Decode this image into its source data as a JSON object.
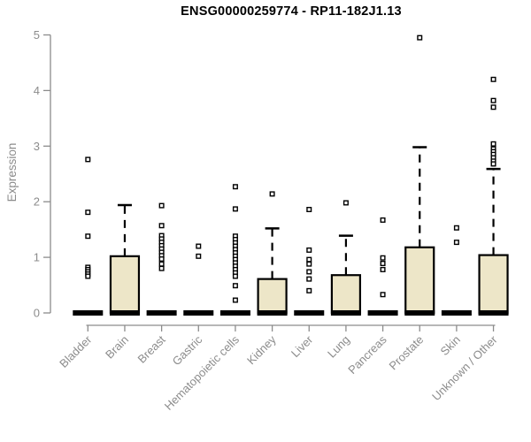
{
  "chart_data": {
    "type": "boxplot",
    "title": "ENSG00000259774 - RP11-182J1.13",
    "ylabel": "Expression",
    "xlabel": "",
    "ylim": [
      0,
      5
    ],
    "yticks": [
      0,
      1,
      2,
      3,
      4,
      5
    ],
    "grid": false,
    "legend": "none",
    "box_fill_color": "#EDE6C8",
    "box_line_color": "#000000",
    "axis_color": "#8c8c8c",
    "categories": [
      "Bladder",
      "Brain",
      "Breast",
      "Gastric",
      "Hematopoietic cells",
      "Kidney",
      "Liver",
      "Lung",
      "Pancreas",
      "Prostate",
      "Skin",
      "Unknown / Other"
    ],
    "series": [
      {
        "category": "Bladder",
        "median": 0,
        "q1": 0,
        "q3": 0,
        "whisker_low": 0,
        "whisker_high": 0,
        "outliers": [
          2.76,
          1.81,
          1.38,
          0.82,
          0.78,
          0.74,
          0.7,
          0.66
        ]
      },
      {
        "category": "Brain",
        "median": 0,
        "q1": 0,
        "q3": 1.02,
        "whisker_low": 0,
        "whisker_high": 1.94,
        "outliers": []
      },
      {
        "category": "Breast",
        "median": 0,
        "q1": 0,
        "q3": 0,
        "whisker_low": 0,
        "whisker_high": 0,
        "outliers": [
          1.93,
          1.57,
          1.39,
          1.33,
          1.27,
          1.21,
          1.15,
          1.09,
          1.03,
          0.97,
          0.88,
          0.8
        ]
      },
      {
        "category": "Gastric",
        "median": 0,
        "q1": 0,
        "q3": 0,
        "whisker_low": 0,
        "whisker_high": 0,
        "outliers": [
          1.2,
          1.02
        ]
      },
      {
        "category": "Hematopoietic cells",
        "median": 0,
        "q1": 0,
        "q3": 0,
        "whisker_low": 0,
        "whisker_high": 0,
        "outliers": [
          2.27,
          1.87,
          1.38,
          1.32,
          1.26,
          1.2,
          1.14,
          1.08,
          1.02,
          0.96,
          0.9,
          0.84,
          0.78,
          0.72,
          0.66,
          0.49,
          0.23
        ]
      },
      {
        "category": "Kidney",
        "median": 0,
        "q1": 0,
        "q3": 0.61,
        "whisker_low": 0,
        "whisker_high": 1.52,
        "outliers": [
          2.14
        ]
      },
      {
        "category": "Liver",
        "median": 0,
        "q1": 0,
        "q3": 0,
        "whisker_low": 0,
        "whisker_high": 0,
        "outliers": [
          1.86,
          1.13,
          0.96,
          0.88,
          0.74,
          0.61,
          0.4
        ]
      },
      {
        "category": "Lung",
        "median": 0,
        "q1": 0,
        "q3": 0.68,
        "whisker_low": 0,
        "whisker_high": 1.39,
        "outliers": [
          1.98
        ]
      },
      {
        "category": "Pancreas",
        "median": 0,
        "q1": 0,
        "q3": 0,
        "whisker_low": 0,
        "whisker_high": 0,
        "outliers": [
          1.67,
          0.99,
          0.89,
          0.78,
          0.33
        ]
      },
      {
        "category": "Prostate",
        "median": 0,
        "q1": 0,
        "q3": 1.18,
        "whisker_low": 0,
        "whisker_high": 2.98,
        "outliers": [
          4.95
        ]
      },
      {
        "category": "Skin",
        "median": 0,
        "q1": 0,
        "q3": 0,
        "whisker_low": 0,
        "whisker_high": 0,
        "outliers": [
          1.53,
          1.27
        ]
      },
      {
        "category": "Unknown / Other",
        "median": 0,
        "q1": 0,
        "q3": 1.04,
        "whisker_low": 0,
        "whisker_high": 2.59,
        "outliers": [
          4.2,
          3.82,
          3.7,
          3.04,
          2.95,
          2.9,
          2.85,
          2.79,
          2.73,
          2.68
        ]
      }
    ]
  }
}
